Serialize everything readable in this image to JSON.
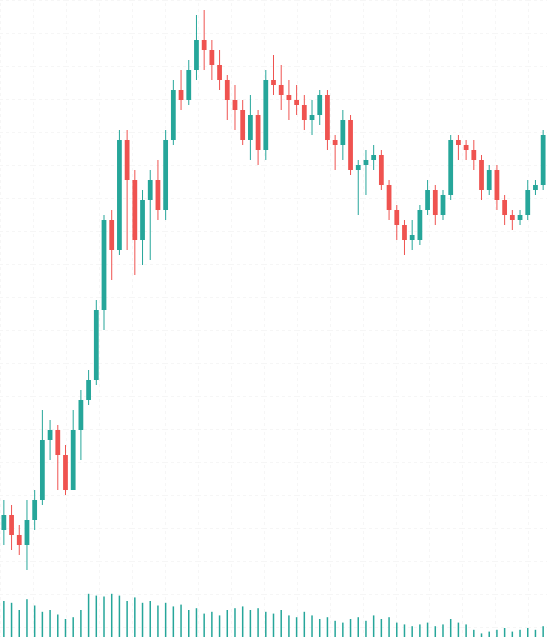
{
  "chart_data": {
    "type": "candlestick",
    "ylim": [
      40,
      640
    ],
    "volume_ylim": [
      0,
      60
    ],
    "up_color": "#26a69a",
    "down_color": "#ef5350",
    "volume_color": "#26a69a",
    "grid": true,
    "open": [
      110,
      125,
      105,
      95,
      120,
      140,
      200,
      210,
      185,
      150,
      210,
      240,
      260,
      330,
      420,
      390,
      500,
      460,
      400,
      440,
      460,
      430,
      500,
      550,
      540,
      570,
      600,
      590,
      575,
      560,
      540,
      530,
      500,
      525,
      490,
      560,
      555,
      545,
      540,
      535,
      520,
      525,
      545,
      500,
      495,
      520,
      470,
      475,
      480,
      485,
      455,
      430,
      415,
      400,
      400,
      430,
      450,
      425,
      445,
      500,
      495,
      490,
      480,
      450,
      470,
      440,
      425,
      420,
      425,
      450,
      455
    ],
    "high": [
      140,
      135,
      115,
      140,
      150,
      230,
      220,
      215,
      195,
      230,
      250,
      270,
      340,
      425,
      430,
      510,
      510,
      470,
      450,
      470,
      480,
      510,
      560,
      570,
      580,
      625,
      630,
      600,
      590,
      565,
      555,
      540,
      545,
      530,
      570,
      585,
      575,
      560,
      555,
      545,
      540,
      550,
      550,
      505,
      530,
      525,
      480,
      490,
      495,
      490,
      460,
      435,
      420,
      420,
      435,
      460,
      455,
      450,
      505,
      505,
      500,
      500,
      485,
      475,
      475,
      445,
      430,
      430,
      460,
      460,
      510
    ],
    "low": [
      95,
      90,
      85,
      70,
      110,
      135,
      180,
      150,
      145,
      150,
      180,
      235,
      255,
      310,
      360,
      385,
      390,
      365,
      375,
      380,
      420,
      420,
      495,
      530,
      535,
      560,
      570,
      560,
      550,
      520,
      510,
      495,
      480,
      475,
      480,
      545,
      530,
      520,
      525,
      510,
      505,
      515,
      490,
      470,
      480,
      465,
      425,
      445,
      470,
      450,
      420,
      400,
      385,
      390,
      395,
      425,
      415,
      420,
      440,
      480,
      480,
      470,
      440,
      445,
      430,
      415,
      410,
      415,
      420,
      445,
      450
    ],
    "close": [
      125,
      105,
      95,
      120,
      140,
      200,
      210,
      185,
      150,
      210,
      240,
      260,
      330,
      420,
      390,
      500,
      460,
      400,
      440,
      460,
      430,
      500,
      550,
      540,
      570,
      600,
      590,
      575,
      560,
      540,
      530,
      500,
      525,
      490,
      560,
      555,
      545,
      540,
      535,
      520,
      525,
      545,
      500,
      495,
      520,
      470,
      475,
      480,
      485,
      455,
      430,
      415,
      400,
      405,
      430,
      450,
      425,
      445,
      500,
      495,
      490,
      480,
      450,
      470,
      440,
      425,
      420,
      425,
      450,
      455,
      505
    ],
    "volume": [
      40,
      38,
      30,
      42,
      35,
      28,
      30,
      25,
      20,
      22,
      30,
      48,
      46,
      45,
      48,
      46,
      40,
      44,
      38,
      40,
      35,
      38,
      34,
      36,
      30,
      32,
      26,
      28,
      24,
      30,
      32,
      34,
      30,
      32,
      28,
      26,
      30,
      24,
      22,
      28,
      24,
      20,
      22,
      18,
      16,
      20,
      22,
      18,
      24,
      20,
      22,
      16,
      14,
      12,
      14,
      16,
      12,
      14,
      20,
      16,
      14,
      8,
      4,
      6,
      8,
      10,
      6,
      8,
      10,
      8,
      12
    ]
  }
}
